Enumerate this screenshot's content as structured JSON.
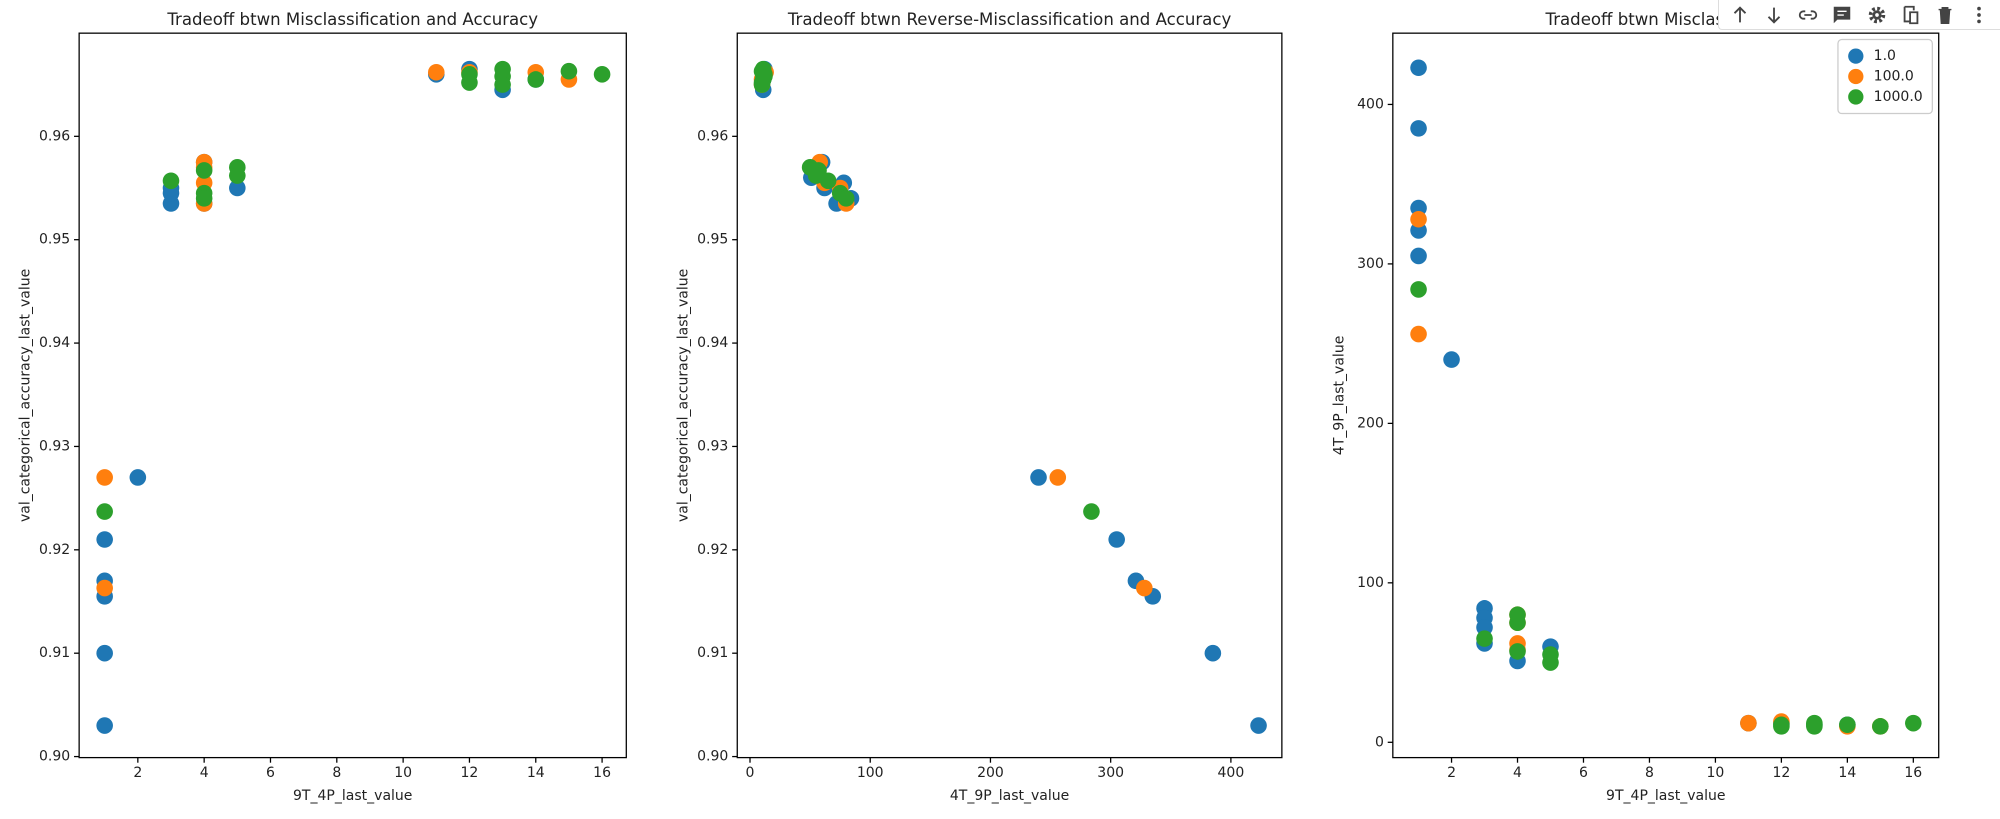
{
  "chart_data": [
    {
      "type": "scatter",
      "title": "Tradeoff btwn Misclassification and Accuracy",
      "x_label": "9T_4P_last_value",
      "y_label": "val_categorical_accuracy_last_value",
      "xlim": [
        0.23,
        16.73
      ],
      "ylim": [
        0.8999,
        0.96998
      ],
      "xticks": [
        2,
        4,
        6,
        8,
        10,
        12,
        14,
        16
      ],
      "yticks": [
        {
          "value": 0.9,
          "label": "0.90"
        },
        0.91,
        0.92,
        0.93,
        0.94,
        0.95,
        0.96
      ],
      "series": [
        {
          "name": "1.0",
          "color": "#1f77b4",
          "x": [
            1,
            1,
            1,
            1,
            1,
            2,
            3,
            3,
            3,
            4,
            4,
            5,
            11,
            12,
            13,
            14
          ],
          "values": [
            0.903,
            0.91,
            0.9155,
            0.917,
            0.921,
            0.927,
            0.9535,
            0.9545,
            0.955,
            0.9535,
            0.9575,
            0.955,
            0.966,
            0.9665,
            0.9645,
            0.9655
          ]
        },
        {
          "name": "100.0",
          "color": "#ff7f0e",
          "x": [
            1,
            1,
            4,
            4,
            4,
            4,
            11,
            12,
            14,
            15
          ],
          "values": [
            0.927,
            0.9163,
            0.9535,
            0.9555,
            0.9575,
            0.957,
            0.9662,
            0.9662,
            0.9662,
            0.9655
          ]
        },
        {
          "name": "1000.0",
          "color": "#2ca02c",
          "x": [
            1,
            3,
            4,
            4,
            4,
            5,
            5,
            12,
            12,
            13,
            13,
            13,
            14,
            15,
            16
          ],
          "values": [
            0.9237,
            0.9557,
            0.9567,
            0.9545,
            0.954,
            0.957,
            0.9562,
            0.966,
            0.9652,
            0.9665,
            0.9658,
            0.965,
            0.9655,
            0.9663,
            0.966
          ]
        }
      ]
    },
    {
      "type": "scatter",
      "title": "Tradeoff btwn Reverse-Misclassification and Accuracy",
      "x_label": "4T_9P_last_value",
      "y_label": "val_categorical_accuracy_last_value",
      "xlim": [
        -10.6,
        442.4
      ],
      "ylim": [
        0.8999,
        0.96998
      ],
      "xticks": [
        0,
        100,
        200,
        300,
        400
      ],
      "yticks": [
        {
          "value": 0.9,
          "label": "0.90"
        },
        0.91,
        0.92,
        0.93,
        0.94,
        0.95,
        0.96
      ],
      "series": [
        {
          "name": "1.0",
          "color": "#1f77b4",
          "x": [
            423,
            385,
            335,
            321,
            305,
            240,
            84,
            78,
            72,
            62,
            51,
            60,
            12,
            12,
            11,
            11
          ],
          "values": [
            0.903,
            0.91,
            0.9155,
            0.917,
            0.921,
            0.927,
            0.954,
            0.9555,
            0.9535,
            0.955,
            0.956,
            0.9575,
            0.966,
            0.9665,
            0.9645,
            0.9655
          ]
        },
        {
          "name": "100.0",
          "color": "#ff7f0e",
          "x": [
            256,
            328,
            80,
            75,
            62,
            58,
            12,
            13,
            10,
            10
          ],
          "values": [
            0.927,
            0.9163,
            0.9535,
            0.955,
            0.9555,
            0.9575,
            0.9662,
            0.9662,
            0.9655,
            0.965
          ]
        },
        {
          "name": "1000.0",
          "color": "#2ca02c",
          "x": [
            284,
            65,
            57,
            75,
            80,
            50,
            55,
            11,
            10,
            11,
            12,
            10,
            11,
            10,
            12
          ],
          "values": [
            0.9237,
            0.9557,
            0.9567,
            0.9545,
            0.954,
            0.957,
            0.9562,
            0.966,
            0.9652,
            0.9665,
            0.9658,
            0.965,
            0.9655,
            0.9663,
            0.966
          ]
        }
      ]
    },
    {
      "type": "scatter",
      "title": "Tradeoff btwn Misclass and R",
      "x_label": "9T_4P_last_value",
      "y_label": "4T_9P_last_value",
      "xlim": [
        0.22,
        16.77
      ],
      "ylim": [
        -9.6,
        444.7
      ],
      "xticks": [
        2,
        4,
        6,
        8,
        10,
        12,
        14,
        16
      ],
      "yticks": [
        0,
        100,
        200,
        300,
        400
      ],
      "legend": "upper right",
      "series": [
        {
          "name": "1.0",
          "color": "#1f77b4",
          "x": [
            1,
            1,
            1,
            1,
            1,
            2,
            3,
            3,
            3,
            3,
            4,
            5,
            11,
            12,
            13,
            14
          ],
          "values": [
            423,
            385,
            335,
            321,
            305,
            240,
            84,
            78,
            72,
            62,
            51,
            60,
            12,
            12,
            11,
            11
          ]
        },
        {
          "name": "100.0",
          "color": "#ff7f0e",
          "x": [
            1,
            1,
            4,
            4,
            4,
            4,
            11,
            12,
            14,
            15
          ],
          "values": [
            256,
            328,
            80,
            75,
            62,
            58,
            12,
            13,
            10,
            10
          ]
        },
        {
          "name": "1000.0",
          "color": "#2ca02c",
          "x": [
            1,
            3,
            4,
            4,
            4,
            5,
            5,
            12,
            12,
            13,
            13,
            13,
            14,
            15,
            16
          ],
          "values": [
            284,
            65,
            57,
            75,
            80,
            50,
            55,
            11,
            10,
            11,
            12,
            10,
            11,
            10,
            12
          ]
        }
      ]
    }
  ]
}
